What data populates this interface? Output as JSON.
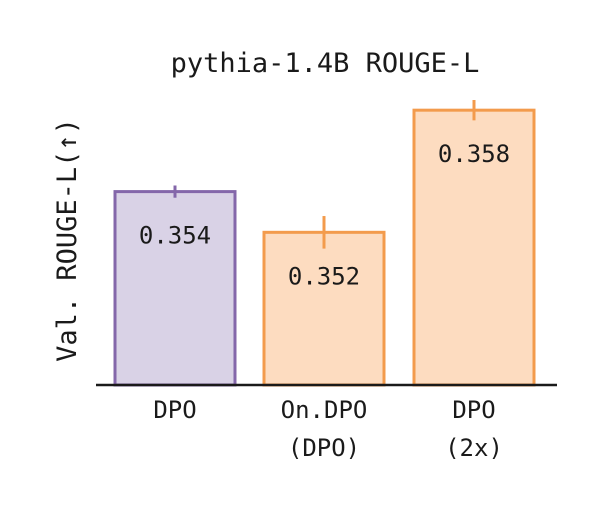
{
  "chart_data": {
    "type": "bar",
    "title": "pythia-1.4B ROUGE-L",
    "ylabel": "Val. ROUGE-L(↑)",
    "xlabel": "",
    "categories": [
      [
        "DPO"
      ],
      [
        "On.DPO",
        "(DPO)"
      ],
      [
        "DPO",
        "(2x)"
      ]
    ],
    "values": [
      0.354,
      0.352,
      0.358
    ],
    "errors": [
      0.0003,
      0.0008,
      0.0005
    ],
    "value_labels": [
      "0.354",
      "0.352",
      "0.358"
    ],
    "ylim": [
      0.3445,
      0.3585
    ],
    "grid": false,
    "colors": {
      "fill": [
        "#d9d2e6",
        "#fddcc0",
        "#fddcc0"
      ],
      "edge": [
        "#8467aa",
        "#f39b4c",
        "#f39b4c"
      ],
      "axis": "#1a1a1a"
    }
  }
}
